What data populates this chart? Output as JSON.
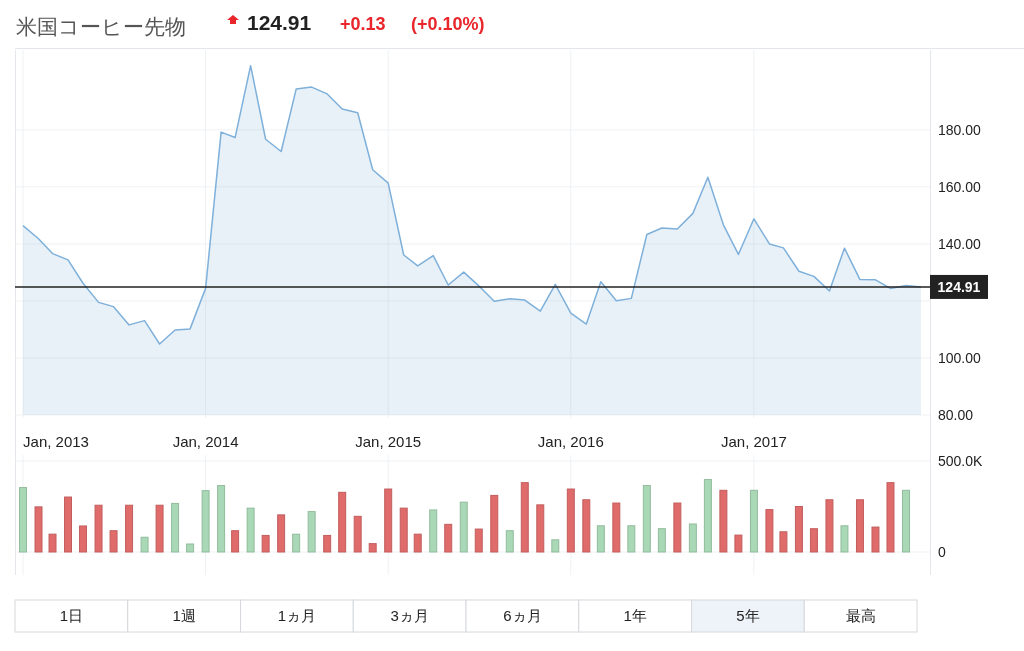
{
  "chart_data": [
    {
      "type": "area",
      "title": "米国コーヒー先物",
      "annotations": [
        "124.91",
        "+0.13",
        "(+0.10%)"
      ],
      "x": [
        "2013-01",
        "2013-02",
        "2013-03",
        "2013-04",
        "2013-05",
        "2013-06",
        "2013-07",
        "2013-08",
        "2013-09",
        "2013-10",
        "2013-11",
        "2013-12",
        "2014-01",
        "2014-02",
        "2014-03",
        "2014-04",
        "2014-05",
        "2014-06",
        "2014-07",
        "2014-08",
        "2014-09",
        "2014-10",
        "2014-11",
        "2014-12",
        "2015-01",
        "2015-02",
        "2015-03",
        "2015-04",
        "2015-05",
        "2015-06",
        "2015-07",
        "2015-08",
        "2015-09",
        "2015-10",
        "2015-11",
        "2015-12",
        "2016-01",
        "2016-02",
        "2016-03",
        "2016-04",
        "2016-05",
        "2016-06",
        "2016-07",
        "2016-08",
        "2016-09",
        "2016-10",
        "2016-11",
        "2016-12",
        "2017-01",
        "2017-02",
        "2017-03",
        "2017-04",
        "2017-05",
        "2017-06",
        "2017-07",
        "2017-08",
        "2017-09",
        "2017-10",
        "2017-11",
        "2017-12"
      ],
      "series": [
        {
          "color": "#7eb0da",
          "values": [
            146.4,
            141.8,
            136.6,
            134.4,
            126.2,
            119.5,
            118.0,
            111.6,
            113.1,
            104.9,
            109.8,
            110.2,
            124.4,
            179.2,
            177.3,
            202.5,
            176.7,
            172.4,
            194.3,
            195.0,
            192.6,
            187.3,
            186.0,
            166.0,
            161.3,
            136.1,
            132.3,
            135.9,
            125.6,
            130.1,
            125.3,
            119.9,
            120.8,
            120.3,
            116.4,
            125.8,
            115.7,
            111.9,
            126.7,
            120.1,
            120.9,
            143.3,
            145.6,
            145.2,
            150.7,
            163.4,
            146.7,
            136.3,
            148.8,
            140.0,
            138.6,
            130.4,
            128.6,
            123.5,
            138.5,
            127.5,
            127.4,
            124.4,
            125.4,
            124.91
          ]
        }
      ],
      "xlim": [
        "2013-01",
        "2017-12-15"
      ],
      "xticks": [
        {
          "value": "2013-01",
          "label": "Jan, 2013"
        },
        {
          "value": "2014-01",
          "label": "Jan, 2014"
        },
        {
          "value": "2015-01",
          "label": "Jan, 2015"
        },
        {
          "value": "2016-01",
          "label": "Jan, 2016"
        },
        {
          "value": "2017-01",
          "label": "Jan, 2017"
        }
      ],
      "ylim": [
        80,
        208
      ],
      "yticks": [
        {
          "value": 80,
          "label": "80.00"
        },
        {
          "value": 100,
          "label": "100.00"
        },
        {
          "value": 120,
          "label": null
        },
        {
          "value": 140,
          "label": "140.00"
        },
        {
          "value": 160,
          "label": "160.00"
        },
        {
          "value": 180,
          "label": "180.00"
        }
      ],
      "grid": true,
      "ref_lines": [
        {
          "axis": "y",
          "value": 124.91,
          "label": "124.91",
          "color": "#222222"
        }
      ]
    },
    {
      "type": "bar",
      "tick_labels": "y",
      "grid": true,
      "x": [
        "2013-01",
        "2013-02",
        "2013-03",
        "2013-04",
        "2013-05",
        "2013-06",
        "2013-07",
        "2013-08",
        "2013-09",
        "2013-10",
        "2013-11",
        "2013-12",
        "2014-01",
        "2014-02",
        "2014-03",
        "2014-04",
        "2014-05",
        "2014-06",
        "2014-07",
        "2014-08",
        "2014-09",
        "2014-10",
        "2014-11",
        "2014-12",
        "2015-01",
        "2015-02",
        "2015-03",
        "2015-04",
        "2015-05",
        "2015-06",
        "2015-07",
        "2015-08",
        "2015-09",
        "2015-10",
        "2015-11",
        "2015-12",
        "2016-01",
        "2016-02",
        "2016-03",
        "2016-04",
        "2016-05",
        "2016-06",
        "2016-07",
        "2016-08",
        "2016-09",
        "2016-10",
        "2016-11",
        "2016-12",
        "2017-01",
        "2017-02",
        "2017-03",
        "2017-04",
        "2017-05",
        "2017-06",
        "2017-07",
        "2017-08",
        "2017-09",
        "2017-10",
        "2017-11"
      ],
      "values": [
        354000,
        248000,
        98000,
        302000,
        143000,
        257000,
        117000,
        257000,
        81000,
        257000,
        267000,
        44000,
        337000,
        365000,
        117000,
        241000,
        91000,
        204000,
        98000,
        222000,
        91000,
        328000,
        196000,
        46000,
        346000,
        241000,
        98000,
        231000,
        152000,
        274000,
        126000,
        311000,
        117000,
        381000,
        259000,
        67000,
        346000,
        287000,
        144000,
        269000,
        144000,
        365000,
        128000,
        269000,
        154000,
        398000,
        339000,
        93000,
        339000,
        233000,
        111000,
        250000,
        128000,
        287000,
        144000,
        287000,
        137000,
        381000,
        339000
      ],
      "colors": [
        "#a8d8b5",
        "#e06b6b",
        "#e06b6b",
        "#e06b6b",
        "#e06b6b",
        "#e06b6b",
        "#e06b6b",
        "#e06b6b",
        "#a8d8b5",
        "#e06b6b",
        "#a8d8b5",
        "#a8d8b5",
        "#a8d8b5",
        "#a8d8b5",
        "#e06b6b",
        "#a8d8b5",
        "#e06b6b",
        "#e06b6b",
        "#a8d8b5",
        "#a8d8b5",
        "#e06b6b",
        "#e06b6b",
        "#e06b6b",
        "#e06b6b",
        "#e06b6b",
        "#e06b6b",
        "#e06b6b",
        "#a8d8b5",
        "#e06b6b",
        "#a8d8b5",
        "#e06b6b",
        "#e06b6b",
        "#a8d8b5",
        "#e06b6b",
        "#e06b6b",
        "#a8d8b5",
        "#e06b6b",
        "#e06b6b",
        "#a8d8b5",
        "#e06b6b",
        "#a8d8b5",
        "#a8d8b5",
        "#a8d8b5",
        "#e06b6b",
        "#a8d8b5",
        "#a8d8b5",
        "#e06b6b",
        "#e06b6b",
        "#a8d8b5",
        "#e06b6b",
        "#e06b6b",
        "#e06b6b",
        "#e06b6b",
        "#e06b6b",
        "#a8d8b5",
        "#e06b6b",
        "#e06b6b",
        "#e06b6b",
        "#a8d8b5"
      ],
      "xlim": [
        "2013-01",
        "2017-12-15"
      ],
      "xticks": [
        {
          "value": "2013-01",
          "label": null
        },
        {
          "value": "2014-01",
          "label": null
        },
        {
          "value": "2015-01",
          "label": null
        },
        {
          "value": "2016-01",
          "label": null
        },
        {
          "value": "2017-01",
          "label": null
        }
      ],
      "ylim": [
        0,
        500000
      ],
      "yticks": [
        0,
        {
          "value": 500000,
          "label": "500.0K"
        }
      ]
    },
    {
      "type": "other",
      "annotations": [
        "1日",
        "1週",
        "1ヵ月",
        "3ヵ月",
        "6ヵ月",
        "1年",
        "5年",
        "最高"
      ]
    }
  ]
}
